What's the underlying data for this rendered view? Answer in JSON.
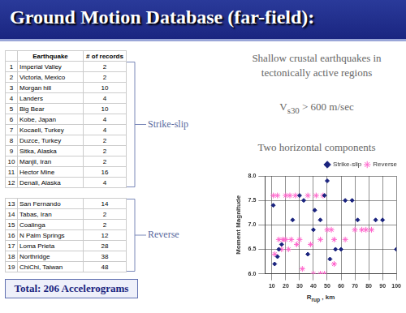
{
  "title": "Ground Motion Database (far-field):",
  "table": {
    "headers": [
      "Earthquake",
      "# of records"
    ],
    "groups": [
      {
        "label": "Strike-slip",
        "rows": [
          [
            1,
            "Imperial Valley",
            2
          ],
          [
            2,
            "Victoria, Mexico",
            2
          ],
          [
            3,
            "Morgan hill",
            10
          ],
          [
            4,
            "Landers",
            4
          ],
          [
            5,
            "Big Bear",
            10
          ],
          [
            6,
            "Kobe, Japan",
            4
          ],
          [
            7,
            "Kocaeli, Turkey",
            4
          ],
          [
            8,
            "Duzce, Turkey",
            2
          ],
          [
            9,
            "Sitka, Alaska",
            2
          ],
          [
            10,
            "Manjil, Iran",
            2
          ],
          [
            11,
            "Hector Mine",
            16
          ],
          [
            12,
            "Denali, Alaska",
            4
          ]
        ]
      },
      {
        "label": "Reverse",
        "rows": [
          [
            13,
            "San Fernando",
            14
          ],
          [
            14,
            "Tabas, Iran",
            2
          ],
          [
            15,
            "Coalinga",
            2
          ],
          [
            16,
            "N Palm Springs",
            12
          ],
          [
            17,
            "Loma Prieta",
            28
          ],
          [
            18,
            "Northridge",
            38
          ],
          [
            19,
            "ChiChi, Taiwan",
            48
          ]
        ]
      }
    ]
  },
  "total": "Total: 206 Accelerograms",
  "notes": [
    "Shallow crustal earthquakes in",
    "tectonically active regions"
  ],
  "vs30": {
    "main": "V",
    "sub": "s30",
    "rest": " > 600 m/sec"
  },
  "components": "Two horizontal components",
  "chart_data": {
    "type": "scatter",
    "xlabel": {
      "main": "R",
      "sub": "rup",
      "rest": " , km"
    },
    "ylabel": "Moment Magnitude",
    "xlim": [
      5,
      100
    ],
    "xticks": [
      10,
      20,
      30,
      40,
      50,
      60,
      70,
      80,
      90,
      100
    ],
    "ylim": [
      6,
      8
    ],
    "yticks": [
      {
        "value": 6,
        "label": "6.0"
      },
      {
        "value": 6.5,
        "label": "6.5"
      },
      {
        "value": 7,
        "label": "7.0"
      },
      {
        "value": 7.5,
        "label": "7.5"
      },
      {
        "value": 8,
        "label": "8.0"
      }
    ],
    "grid": true,
    "legend": "top-right",
    "series": [
      {
        "name": "Strike-slip",
        "color": "#1a237e",
        "marker": "diamond",
        "x": [
          11,
          12,
          14,
          15,
          17,
          25,
          30,
          33,
          36,
          40,
          41,
          45,
          48,
          50,
          52,
          56,
          60,
          63,
          68,
          72,
          85,
          90,
          100
        ],
        "values": [
          7.4,
          6.2,
          6.35,
          6.5,
          6.6,
          7.1,
          7.6,
          7.5,
          6.4,
          6.9,
          7.3,
          7.1,
          7.6,
          7.9,
          6.3,
          6.5,
          6.5,
          7.5,
          7.5,
          7.1,
          7.1,
          7.1,
          6.5
        ]
      },
      {
        "name": "Reverse",
        "color": "#ff66cc",
        "marker": "star",
        "x": [
          11,
          14,
          20,
          23,
          27,
          36,
          42,
          47,
          15,
          18,
          20,
          24,
          30,
          45,
          55,
          63,
          70,
          75,
          78,
          82,
          50,
          53,
          17,
          22,
          28,
          38,
          40,
          45,
          48,
          32,
          55,
          12
        ],
        "values": [
          7.6,
          7.6,
          7.6,
          7.6,
          7.6,
          7.6,
          7.6,
          7.6,
          6.7,
          6.7,
          6.7,
          6.7,
          6.7,
          6.7,
          6.7,
          6.7,
          6.9,
          6.9,
          6.9,
          6.9,
          6.9,
          6.9,
          6.5,
          6.5,
          6.6,
          6.6,
          6.0,
          6.0,
          6.0,
          6.1,
          6.2,
          6.4
        ]
      }
    ]
  }
}
